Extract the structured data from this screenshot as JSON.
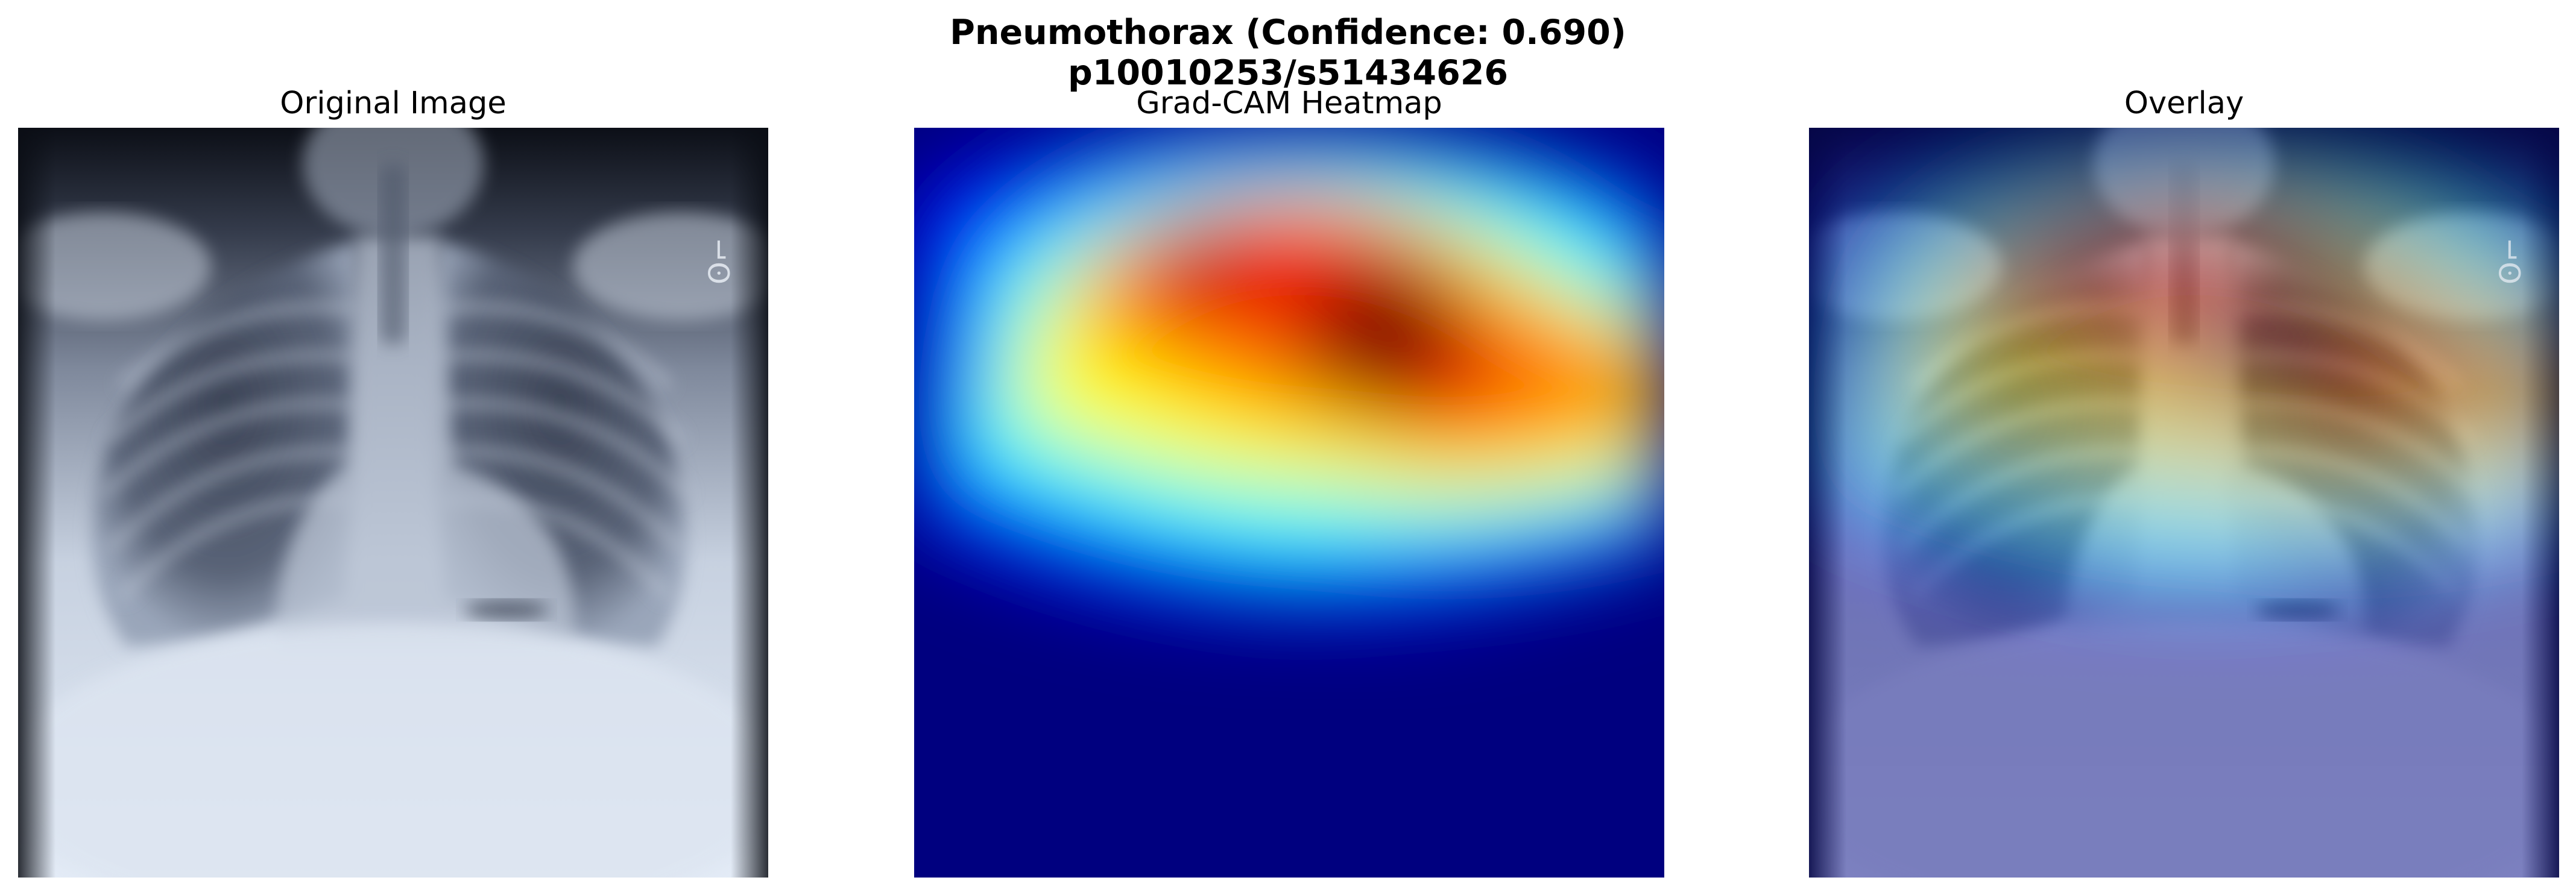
{
  "figure": {
    "title_line1": "Pneumothorax (Confidence: 0.690)",
    "title_line2": "p10010253/s51434626"
  },
  "panels": [
    {
      "title": "Original Image"
    },
    {
      "title": "Grad-CAM Heatmap"
    },
    {
      "title": "Overlay"
    }
  ],
  "xray_marker_text": "ʘ⌐"
}
